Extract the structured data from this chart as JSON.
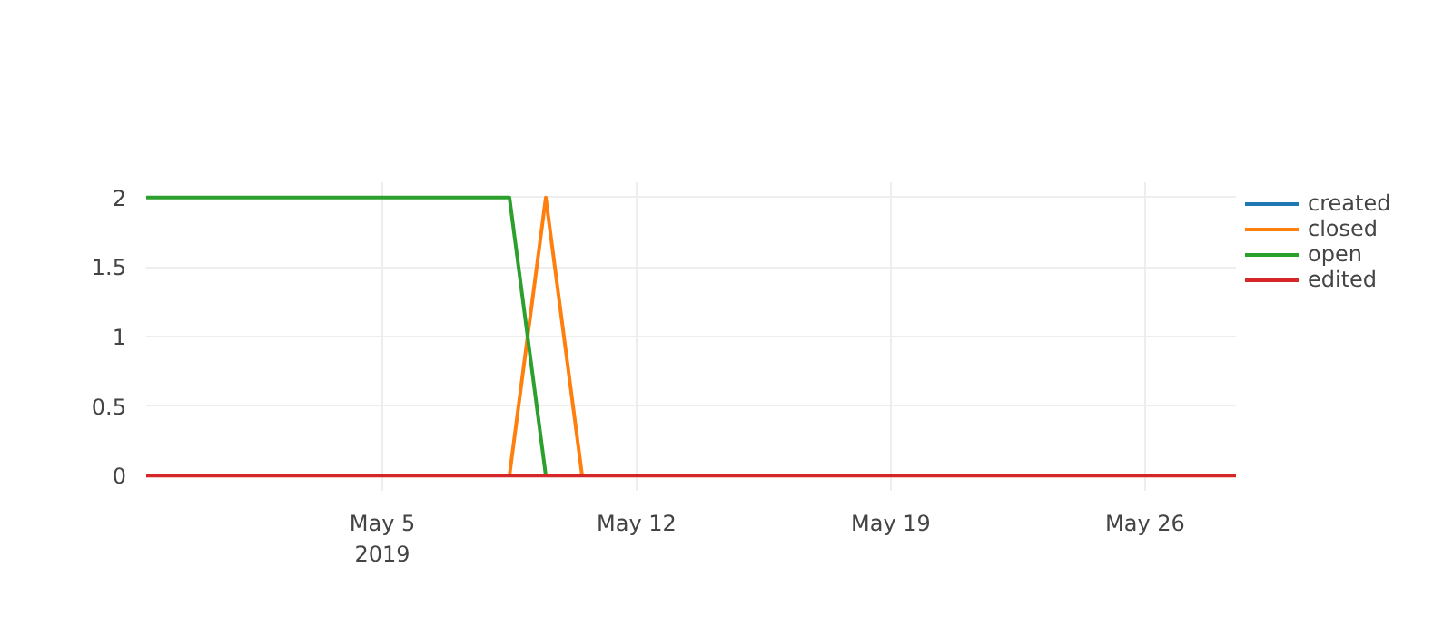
{
  "chart_data": {
    "type": "line",
    "x": [
      "2019-04-28T12:00",
      "2019-04-29T12:00",
      "2019-04-30T12:00",
      "2019-05-01T12:00",
      "2019-05-02T12:00",
      "2019-05-03T12:00",
      "2019-05-04T12:00",
      "2019-05-05T12:00",
      "2019-05-06T12:00",
      "2019-05-07T12:00",
      "2019-05-08T12:00",
      "2019-05-09T12:00",
      "2019-05-10T12:00",
      "2019-05-11T12:00",
      "2019-05-12T12:00",
      "2019-05-13T12:00",
      "2019-05-14T12:00",
      "2019-05-15T12:00",
      "2019-05-16T12:00",
      "2019-05-17T12:00",
      "2019-05-18T12:00",
      "2019-05-19T12:00",
      "2019-05-20T12:00",
      "2019-05-21T12:00",
      "2019-05-22T12:00",
      "2019-05-23T12:00",
      "2019-05-24T12:00",
      "2019-05-25T12:00",
      "2019-05-26T12:00",
      "2019-05-27T12:00",
      "2019-05-28T12:00"
    ],
    "series": [
      {
        "name": "created",
        "color": "#1f77b4",
        "values": [
          null,
          null,
          null,
          null,
          null,
          null,
          null,
          null,
          null,
          null,
          null,
          null,
          null,
          null,
          null,
          null,
          null,
          null,
          null,
          null,
          null,
          null,
          null,
          null,
          null,
          null,
          null,
          null,
          null,
          null,
          null
        ]
      },
      {
        "name": "closed",
        "color": "#ff7f0e",
        "values": [
          null,
          null,
          null,
          null,
          null,
          null,
          null,
          null,
          null,
          null,
          0,
          2,
          0,
          null,
          null,
          null,
          null,
          null,
          null,
          null,
          null,
          null,
          null,
          null,
          null,
          null,
          null,
          null,
          null,
          null,
          null
        ]
      },
      {
        "name": "open",
        "color": "#2ca02c",
        "values": [
          2,
          2,
          2,
          2,
          2,
          2,
          2,
          2,
          2,
          2,
          2,
          0,
          null,
          null,
          null,
          null,
          null,
          null,
          null,
          null,
          null,
          null,
          null,
          null,
          null,
          null,
          null,
          null,
          null,
          null,
          null
        ]
      },
      {
        "name": "edited",
        "color": "#d62728",
        "values": [
          0,
          0,
          0,
          0,
          0,
          0,
          0,
          0,
          0,
          0,
          0,
          0,
          0,
          0,
          0,
          0,
          0,
          0,
          0,
          0,
          0,
          0,
          0,
          0,
          0,
          0,
          0,
          0,
          0,
          0,
          0
        ]
      }
    ],
    "xlim": [
      "2019-04-28T12:00",
      "2019-05-28T12:00"
    ],
    "xticks": [
      {
        "value": "2019-05-05",
        "label": "May 5\n2019"
      },
      {
        "value": "2019-05-12",
        "label": "May 12"
      },
      {
        "value": "2019-05-19",
        "label": "May 19"
      },
      {
        "value": "2019-05-26",
        "label": "May 26"
      }
    ],
    "ylim": [
      -0.11,
      2.11
    ],
    "yticks": [
      0,
      0.5,
      1,
      1.5,
      2
    ],
    "grid": true,
    "legend": "top right",
    "line_style": "solid"
  }
}
